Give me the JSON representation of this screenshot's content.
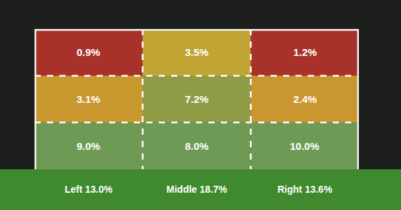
{
  "chart_data": {
    "type": "heatmap",
    "categories": [
      "Left 13.0%",
      "Middle 18.7%",
      "Right 13.6%"
    ],
    "cells": [
      [
        0.9,
        3.5,
        1.2
      ],
      [
        3.1,
        7.2,
        2.4
      ],
      [
        9.0,
        8.0,
        10.0
      ]
    ],
    "value_labels": [
      [
        "0.9%",
        "3.5%",
        "1.2%"
      ],
      [
        "3.1%",
        "7.2%",
        "2.4%"
      ],
      [
        "9.0%",
        "8.0%",
        "10.0%"
      ]
    ],
    "colors": [
      [
        "#a8322a",
        "#c2a434",
        "#a8322a"
      ],
      [
        "#c9982f",
        "#8f9c45",
        "#c9962f"
      ],
      [
        "#6f9a55",
        "#6f9a55",
        "#6f9a55"
      ]
    ],
    "data_labels": true,
    "tick_labels": "x"
  }
}
